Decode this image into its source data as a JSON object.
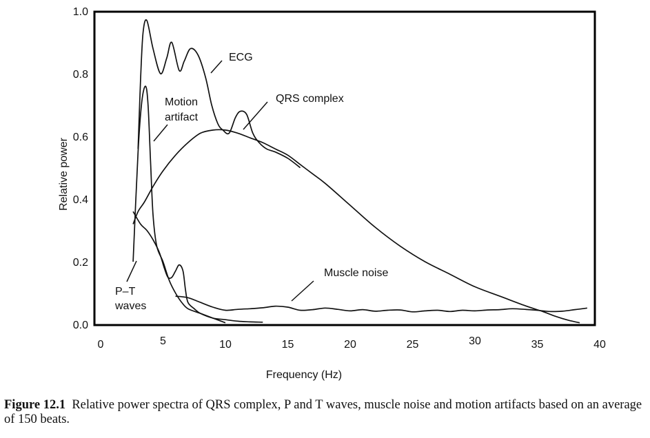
{
  "chart_data": {
    "type": "line",
    "xlabel": "Frequency (Hz)",
    "ylabel": "Relative power",
    "xlim": [
      0,
      40
    ],
    "ylim": [
      0,
      1.0
    ],
    "x_ticks": [
      "0",
      "5",
      "10",
      "15",
      "20",
      "25",
      "30",
      "35",
      "40"
    ],
    "y_ticks": [
      "0.0",
      "0.2",
      "0.4",
      "0.6",
      "0.8",
      "1.0"
    ],
    "grid": false,
    "series": [
      {
        "name": "ECG",
        "x": [
          3.0,
          3.2,
          3.4,
          3.7,
          4.2,
          4.8,
          5.3,
          5.7,
          6.3,
          6.7,
          7.2,
          7.8,
          8.4,
          8.9,
          9.4,
          9.8,
          10.3,
          10.8,
          11.2,
          11.7,
          12.2,
          12.7,
          13.3,
          14.0,
          15.0,
          16.0
        ],
        "y": [
          0.56,
          0.78,
          0.93,
          0.97,
          0.88,
          0.8,
          0.85,
          0.9,
          0.81,
          0.84,
          0.88,
          0.86,
          0.79,
          0.7,
          0.64,
          0.62,
          0.61,
          0.66,
          0.68,
          0.67,
          0.61,
          0.58,
          0.56,
          0.55,
          0.53,
          0.5
        ]
      },
      {
        "name": "QRS complex",
        "x": [
          2.6,
          3.0,
          3.5,
          4.2,
          5.0,
          6.0,
          7.0,
          8.0,
          9.0,
          10.0,
          11.0,
          12.0,
          13.0,
          14.0,
          15.0,
          16.0,
          17.0,
          18.0,
          20.0,
          22.0,
          24.0,
          26.0,
          28.0,
          30.0,
          32.0,
          34.0,
          35.5,
          36.5,
          37.5,
          38.4
        ],
        "y": [
          0.32,
          0.36,
          0.39,
          0.44,
          0.49,
          0.54,
          0.58,
          0.61,
          0.62,
          0.62,
          0.61,
          0.595,
          0.58,
          0.56,
          0.54,
          0.51,
          0.48,
          0.45,
          0.38,
          0.31,
          0.25,
          0.2,
          0.16,
          0.12,
          0.09,
          0.06,
          0.04,
          0.025,
          0.013,
          0.005
        ]
      },
      {
        "name": "Motion artifact",
        "x": [
          2.6,
          3.0,
          3.3,
          3.6,
          3.8,
          4.0,
          4.2,
          4.5,
          5.0,
          5.5,
          6.0,
          6.5,
          7.0,
          8.0,
          9.0,
          10.0
        ],
        "y": [
          0.2,
          0.55,
          0.71,
          0.76,
          0.7,
          0.52,
          0.35,
          0.25,
          0.2,
          0.14,
          0.1,
          0.07,
          0.05,
          0.035,
          0.02,
          0.005
        ]
      },
      {
        "name": "P–T waves",
        "x": [
          2.6,
          3.2,
          3.7,
          4.2,
          4.7,
          5.1,
          5.4,
          5.7,
          6.0,
          6.3,
          6.6,
          6.8,
          7.0,
          7.5,
          8.0,
          9.0,
          10.0,
          11.0,
          12.0,
          13.0
        ],
        "y": [
          0.36,
          0.32,
          0.3,
          0.27,
          0.23,
          0.18,
          0.15,
          0.15,
          0.17,
          0.19,
          0.17,
          0.11,
          0.07,
          0.05,
          0.035,
          0.02,
          0.015,
          0.01,
          0.008,
          0.007
        ]
      },
      {
        "name": "Muscle noise",
        "x": [
          6.0,
          7.0,
          8.0,
          9.0,
          10.0,
          11.0,
          12.0,
          13.0,
          14.0,
          15.0,
          16.0,
          17.0,
          18.0,
          19.0,
          20.0,
          21.0,
          22.0,
          23.0,
          24.0,
          25.0,
          26.0,
          27.0,
          28.0,
          29.0,
          30.0,
          31.0,
          32.0,
          33.0,
          34.0,
          35.0,
          36.0,
          37.0,
          38.0,
          39.0
        ],
        "y": [
          0.09,
          0.085,
          0.07,
          0.055,
          0.045,
          0.048,
          0.05,
          0.053,
          0.058,
          0.055,
          0.045,
          0.047,
          0.052,
          0.048,
          0.043,
          0.047,
          0.042,
          0.045,
          0.046,
          0.04,
          0.043,
          0.045,
          0.041,
          0.045,
          0.043,
          0.046,
          0.047,
          0.05,
          0.048,
          0.045,
          0.041,
          0.042,
          0.047,
          0.052
        ]
      }
    ],
    "annotations": [
      {
        "text_lines": [
          "ECG"
        ],
        "series": 0
      },
      {
        "text_lines": [
          "QRS complex"
        ],
        "series": 1
      },
      {
        "text_lines": [
          "Motion",
          "artifact"
        ],
        "series": 2
      },
      {
        "text_lines": [
          "P–T",
          "waves"
        ],
        "series": 3
      },
      {
        "text_lines": [
          "Muscle noise"
        ],
        "series": 4
      }
    ]
  },
  "caption": {
    "label": "Figure 12.1",
    "text": "Relative power spectra of QRS complex, P and T waves, muscle noise and motion artifacts based on an average of 150 beats."
  }
}
